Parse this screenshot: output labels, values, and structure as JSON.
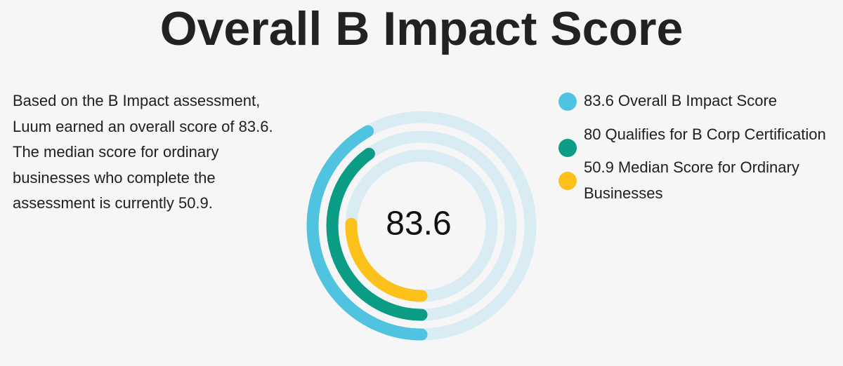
{
  "title": "Overall B Impact Score",
  "description": "Based on the B Impact assessment, Luum earned an overall score of 83.6. The median score for ordinary businesses who complete the assessment is currently 50.9.",
  "center_label": "83.6",
  "track_color": "#d9ecf3",
  "chart_data": {
    "type": "radial-bar",
    "title": "Overall B Impact Score",
    "center_label": "83.6",
    "max": 200,
    "series": [
      {
        "name": "Overall B Impact Score",
        "value": 83.6,
        "color": "#4fc3e0"
      },
      {
        "name": "Qualifies for B Corp Certification",
        "value": 80,
        "color": "#0a9c84"
      },
      {
        "name": "Median Score for Ordinary Businesses",
        "value": 50.9,
        "color": "#fcc21b"
      }
    ]
  },
  "legend": [
    {
      "value": "83.6",
      "label": "Overall B Impact Score",
      "color": "#4fc3e0"
    },
    {
      "value": "80",
      "label": "Qualifies for B Corp Certification",
      "color": "#0a9c84"
    },
    {
      "value": "50.9",
      "label": "Median Score for Ordinary Businesses",
      "color": "#fcc21b"
    }
  ]
}
